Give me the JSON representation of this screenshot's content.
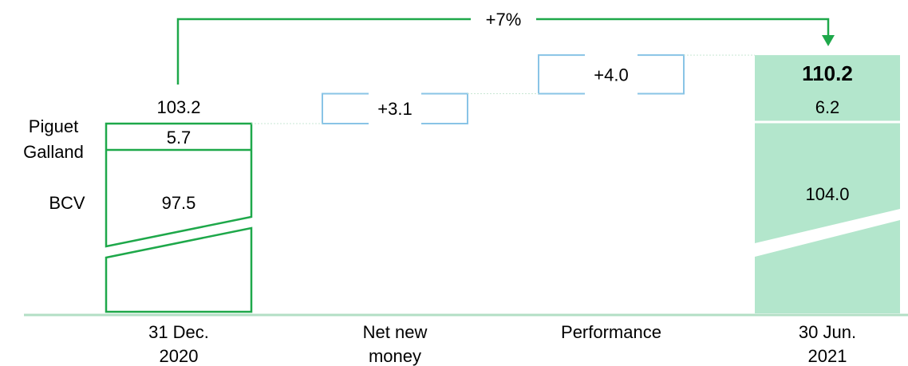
{
  "chart_data": {
    "type": "waterfall",
    "colors": {
      "outline": "#1ea84a",
      "fill": "#b3e6cc",
      "delta": "#89c4e6",
      "axis": "#b3dfc5",
      "dashed": "#c9e7d4",
      "arrow": "#1ea84a"
    },
    "categories": [
      "31 Dec.\n2020",
      "Net new\nmoney",
      "Performance",
      "30 Jun.\n2021"
    ],
    "category_lines": [
      [
        "31 Dec.",
        "2020"
      ],
      [
        "Net new",
        "money"
      ],
      [
        "Performance"
      ],
      [
        "30 Jun.",
        "2021"
      ]
    ],
    "start": {
      "total": 103.2,
      "total_label": "103.2",
      "segments": [
        {
          "name": "BCV",
          "value": 97.5,
          "label": "97.5"
        },
        {
          "name": "Piguet Galland",
          "value": 5.7,
          "label": "5.7"
        }
      ]
    },
    "deltas": [
      {
        "name": "Net new money",
        "value": 3.1,
        "label": "+3.1"
      },
      {
        "name": "Performance",
        "value": 4.0,
        "label": "+4.0"
      }
    ],
    "end": {
      "total": 110.2,
      "total_label": "110.2",
      "segments": [
        {
          "name": "BCV",
          "value": 104.0,
          "label": "104.0"
        },
        {
          "name": "Piguet Galland",
          "value": 6.2,
          "label": "6.2"
        }
      ]
    },
    "segment_labels": [
      "Piguet",
      "Galland",
      "BCV"
    ],
    "growth_label": "+7%",
    "axis_break": true
  }
}
